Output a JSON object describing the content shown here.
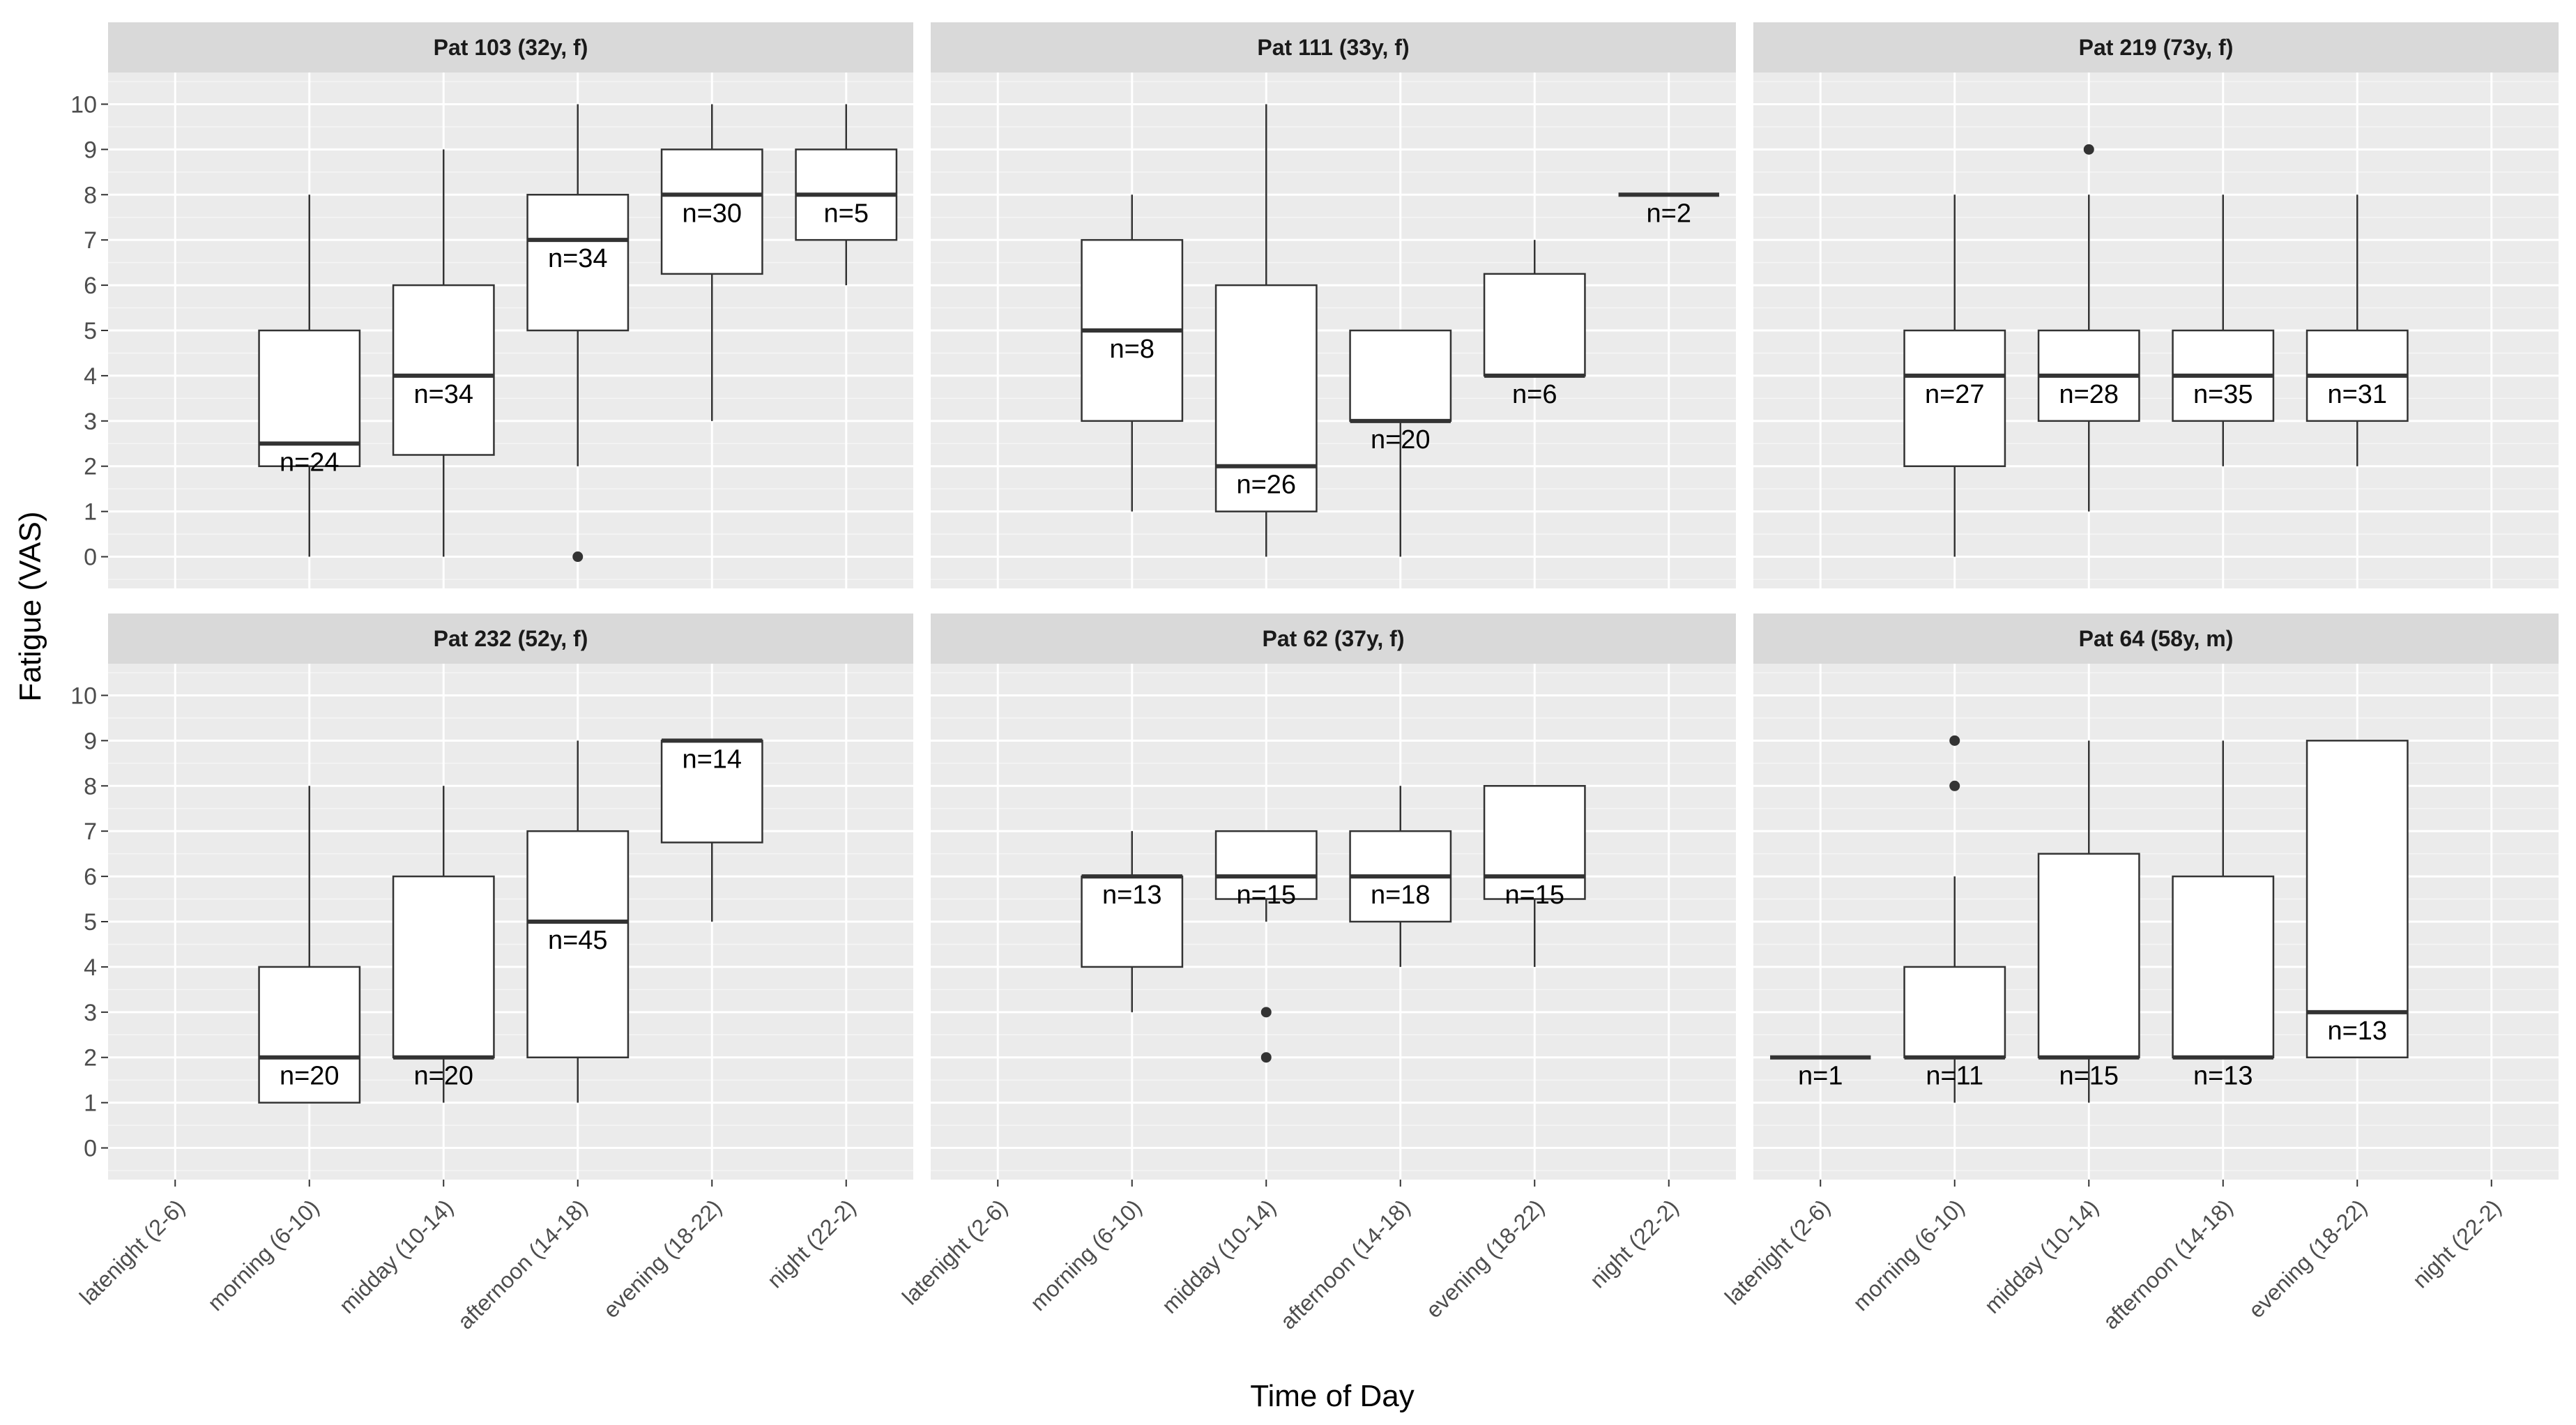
{
  "chart_data": {
    "type": "boxplot",
    "xlabel": "Time of Day",
    "ylabel": "Fatigue (VAS)",
    "ylim": [
      -0.7,
      10.7
    ],
    "yticks": [
      0,
      1,
      2,
      3,
      4,
      5,
      6,
      7,
      8,
      9,
      10
    ],
    "categories": [
      "latenight (2-6)",
      "morning (6-10)",
      "midday (10-14)",
      "afternoon (14-18)",
      "evening (18-22)",
      "night (22-2)"
    ],
    "facets": [
      {
        "title": "Pat 103 (32y, f)",
        "boxes": [
          {
            "cat": 1,
            "lower": 0,
            "q1": 2,
            "median": 2.5,
            "q3": 5,
            "upper": 8,
            "outliers": [],
            "n": "n=24"
          },
          {
            "cat": 2,
            "lower": 0,
            "q1": 2.25,
            "median": 4,
            "q3": 6,
            "upper": 9,
            "outliers": [],
            "n": "n=34"
          },
          {
            "cat": 3,
            "lower": 2,
            "q1": 5,
            "median": 7,
            "q3": 8,
            "upper": 10,
            "outliers": [
              0
            ],
            "n": "n=34"
          },
          {
            "cat": 4,
            "lower": 3,
            "q1": 6.25,
            "median": 8,
            "q3": 9,
            "upper": 10,
            "outliers": [],
            "n": "n=30"
          },
          {
            "cat": 5,
            "lower": 6,
            "q1": 7,
            "median": 8,
            "q3": 9,
            "upper": 10,
            "outliers": [],
            "n": "n=5"
          }
        ]
      },
      {
        "title": "Pat 111 (33y, f)",
        "boxes": [
          {
            "cat": 1,
            "lower": 1,
            "q1": 3,
            "median": 5,
            "q3": 7,
            "upper": 8,
            "outliers": [],
            "n": "n=8"
          },
          {
            "cat": 2,
            "lower": 0,
            "q1": 1,
            "median": 2,
            "q3": 6,
            "upper": 10,
            "outliers": [],
            "n": "n=26"
          },
          {
            "cat": 3,
            "lower": 0,
            "q1": 3,
            "median": 3,
            "q3": 5,
            "upper": 5,
            "outliers": [],
            "n": "n=20"
          },
          {
            "cat": 4,
            "lower": 4,
            "q1": 4,
            "median": 4,
            "q3": 6.25,
            "upper": 7,
            "outliers": [],
            "n": "n=6"
          },
          {
            "cat": 5,
            "lower": 8,
            "q1": 8,
            "median": 8,
            "q3": 8,
            "upper": 8,
            "outliers": [],
            "n": "n=2"
          }
        ]
      },
      {
        "title": "Pat 219 (73y, f)",
        "boxes": [
          {
            "cat": 1,
            "lower": 0,
            "q1": 2,
            "median": 4,
            "q3": 5,
            "upper": 8,
            "outliers": [],
            "n": "n=27"
          },
          {
            "cat": 2,
            "lower": 1,
            "q1": 3,
            "median": 4,
            "q3": 5,
            "upper": 8,
            "outliers": [
              9
            ],
            "n": "n=28"
          },
          {
            "cat": 3,
            "lower": 2,
            "q1": 3,
            "median": 4,
            "q3": 5,
            "upper": 8,
            "outliers": [],
            "n": "n=35"
          },
          {
            "cat": 4,
            "lower": 2,
            "q1": 3,
            "median": 4,
            "q3": 5,
            "upper": 8,
            "outliers": [],
            "n": "n=31"
          }
        ]
      },
      {
        "title": "Pat 232 (52y, f)",
        "boxes": [
          {
            "cat": 1,
            "lower": 1,
            "q1": 1,
            "median": 2,
            "q3": 4,
            "upper": 8,
            "outliers": [],
            "n": "n=20"
          },
          {
            "cat": 2,
            "lower": 1,
            "q1": 2,
            "median": 2,
            "q3": 6,
            "upper": 8,
            "outliers": [],
            "n": "n=20"
          },
          {
            "cat": 3,
            "lower": 1,
            "q1": 2,
            "median": 5,
            "q3": 7,
            "upper": 9,
            "outliers": [],
            "n": "n=45"
          },
          {
            "cat": 4,
            "lower": 5,
            "q1": 6.75,
            "median": 9,
            "q3": 9,
            "upper": 9,
            "outliers": [],
            "n": "n=14"
          }
        ]
      },
      {
        "title": "Pat 62 (37y, f)",
        "boxes": [
          {
            "cat": 1,
            "lower": 3,
            "q1": 4,
            "median": 6,
            "q3": 6,
            "upper": 7,
            "outliers": [],
            "n": "n=13"
          },
          {
            "cat": 2,
            "lower": 5,
            "q1": 5.5,
            "median": 6,
            "q3": 7,
            "upper": 7,
            "outliers": [
              2,
              3
            ],
            "n": "n=15"
          },
          {
            "cat": 3,
            "lower": 4,
            "q1": 5,
            "median": 6,
            "q3": 7,
            "upper": 8,
            "outliers": [],
            "n": "n=18"
          },
          {
            "cat": 4,
            "lower": 4,
            "q1": 5.5,
            "median": 6,
            "q3": 8,
            "upper": 8,
            "outliers": [],
            "n": "n=15"
          }
        ]
      },
      {
        "title": "Pat 64 (58y, m)",
        "boxes": [
          {
            "cat": 0,
            "lower": 2,
            "q1": 2,
            "median": 2,
            "q3": 2,
            "upper": 2,
            "outliers": [],
            "n": "n=1"
          },
          {
            "cat": 1,
            "lower": 1,
            "q1": 2,
            "median": 2,
            "q3": 4,
            "upper": 6,
            "outliers": [
              8,
              9
            ],
            "n": "n=11"
          },
          {
            "cat": 2,
            "lower": 1,
            "q1": 2,
            "median": 2,
            "q3": 6.5,
            "upper": 9,
            "outliers": [],
            "n": "n=15"
          },
          {
            "cat": 3,
            "lower": 2,
            "q1": 2,
            "median": 2,
            "q3": 6,
            "upper": 9,
            "outliers": [],
            "n": "n=13"
          },
          {
            "cat": 4,
            "lower": 2,
            "q1": 2,
            "median": 3,
            "q3": 9,
            "upper": 9,
            "outliers": [],
            "n": "n=13"
          }
        ]
      }
    ]
  }
}
